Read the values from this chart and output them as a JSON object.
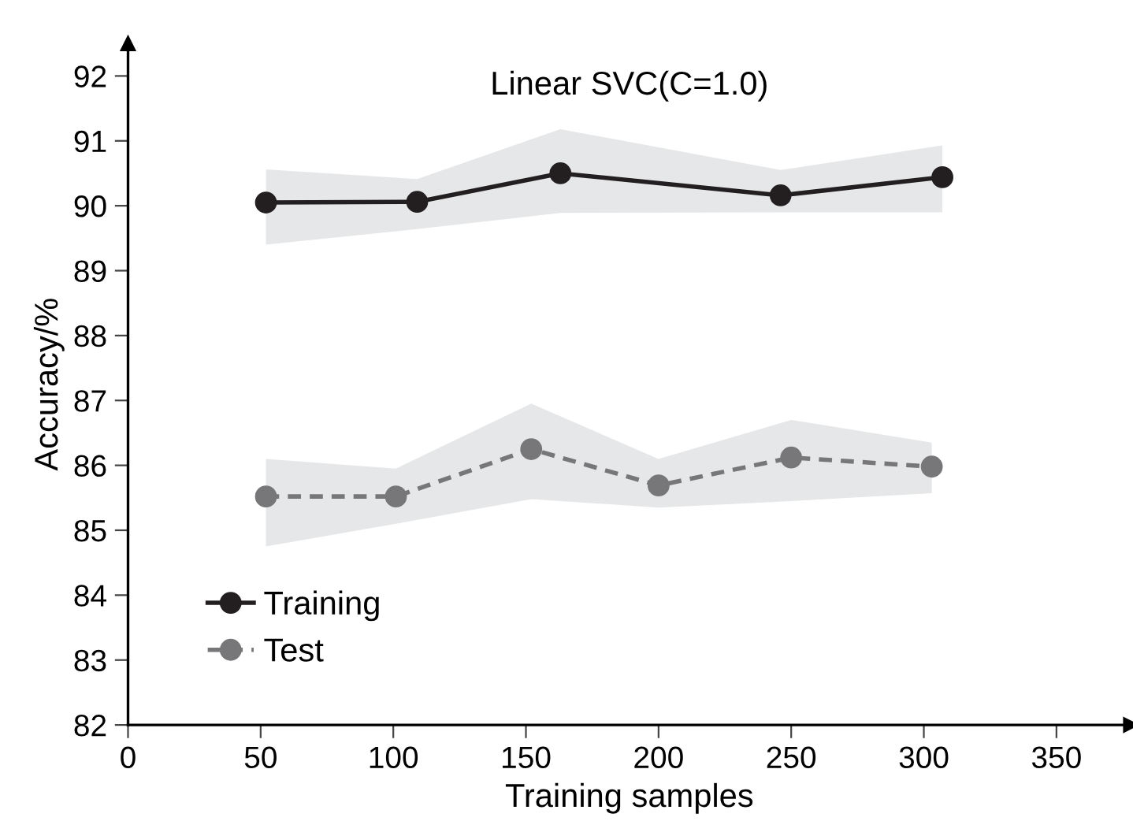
{
  "chart_data": {
    "type": "line",
    "title": "Linear SVC(C=1.0)",
    "xlabel": "Training samples",
    "ylabel": "Accuracy/%",
    "xlim": [
      0,
      378
    ],
    "xticks": [
      0,
      50,
      100,
      150,
      200,
      250,
      300,
      350
    ],
    "ylim": [
      82,
      92.5
    ],
    "yticks": [
      82,
      83,
      84,
      85,
      86,
      87,
      88,
      89,
      90,
      91,
      92
    ],
    "grid": false,
    "legend": "bottom left",
    "marker": "circle",
    "series": [
      {
        "name": "Training",
        "color": "#231f20",
        "line_style": "solid",
        "x": [
          52,
          109,
          163,
          246,
          307
        ],
        "values": [
          90.05,
          90.06,
          90.5,
          90.16,
          90.44
        ],
        "lower": [
          89.4,
          89.64,
          89.89,
          89.9,
          89.9
        ],
        "upper": [
          90.56,
          90.41,
          91.18,
          90.55,
          90.93
        ]
      },
      {
        "name": "Test",
        "color": "#77777a",
        "line_style": "dashed",
        "x": [
          52,
          101,
          152,
          200,
          250,
          303
        ],
        "values": [
          85.52,
          85.52,
          86.25,
          85.69,
          86.12,
          85.98
        ],
        "lower": [
          84.75,
          85.1,
          85.48,
          85.35,
          85.45,
          85.57
        ],
        "upper": [
          86.1,
          85.95,
          86.95,
          86.1,
          86.7,
          86.35
        ]
      }
    ]
  }
}
